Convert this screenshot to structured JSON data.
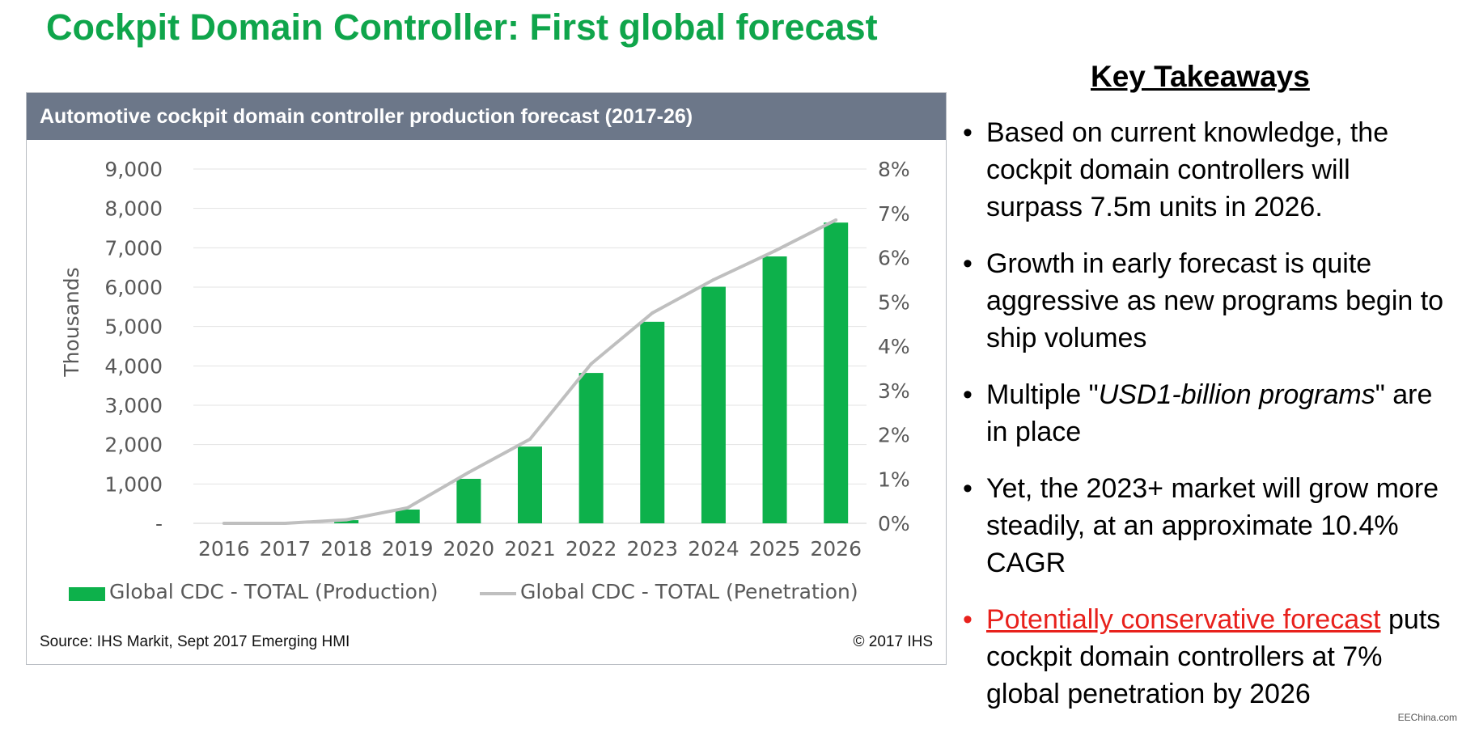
{
  "page": {
    "title": "Cockpit Domain Controller: First global forecast"
  },
  "chart_panel": {
    "header": "Automotive cockpit domain controller production forecast (2017-26)",
    "source": "Source: IHS Markit, Sept 2017 Emerging HMI",
    "copyright": "© 2017 IHS"
  },
  "chart_data": {
    "type": "bar",
    "title": "Automotive cockpit domain controller production forecast (2017-26)",
    "categories": [
      "2016",
      "2017",
      "2018",
      "2019",
      "2020",
      "2021",
      "2022",
      "2023",
      "2024",
      "2025",
      "2026"
    ],
    "ylabel": "Thousands",
    "ylim": [
      0,
      9000
    ],
    "y_ticks": [
      "-",
      "1,000",
      "2,000",
      "3,000",
      "4,000",
      "5,000",
      "6,000",
      "7,000",
      "8,000",
      "9,000"
    ],
    "y2lim": [
      0,
      8
    ],
    "y2_ticks": [
      "0%",
      "1%",
      "2%",
      "3%",
      "4%",
      "5%",
      "6%",
      "7%",
      "8%"
    ],
    "grid": true,
    "legend_position": "bottom",
    "series": [
      {
        "name": "Global CDC - TOTAL (Production)",
        "type": "bar",
        "axis": "left",
        "color": "#0db14b",
        "values": [
          0,
          0,
          80,
          350,
          1130,
          1950,
          3820,
          5120,
          6010,
          6780,
          7640
        ]
      },
      {
        "name": "Global CDC - TOTAL (Penetration)",
        "type": "line",
        "axis": "right",
        "color": "#bfbfbf",
        "values": [
          0,
          0,
          0.08,
          0.35,
          1.15,
          1.9,
          3.6,
          4.75,
          5.5,
          6.15,
          6.85
        ]
      }
    ]
  },
  "takeaways": {
    "heading": "Key Takeaways",
    "bullet": "•",
    "items": [
      {
        "text": "Based on current knowledge, the cockpit domain controllers will surpass 7.5m units in 2026."
      },
      {
        "text": "Growth in early forecast is quite aggressive as new programs begin to ship volumes"
      },
      {
        "prefix": "Multiple \"",
        "italic": "USD1-billion programs",
        "suffix": "\" are in place"
      },
      {
        "text": "Yet, the 2023+ market will grow more steadily, at an approximate 10.4% CAGR"
      },
      {
        "highlight": "Potentially conservative forecast",
        "text": " puts cockpit domain controllers at 7% global penetration by 2026"
      }
    ]
  },
  "watermark": "EEChina.com"
}
